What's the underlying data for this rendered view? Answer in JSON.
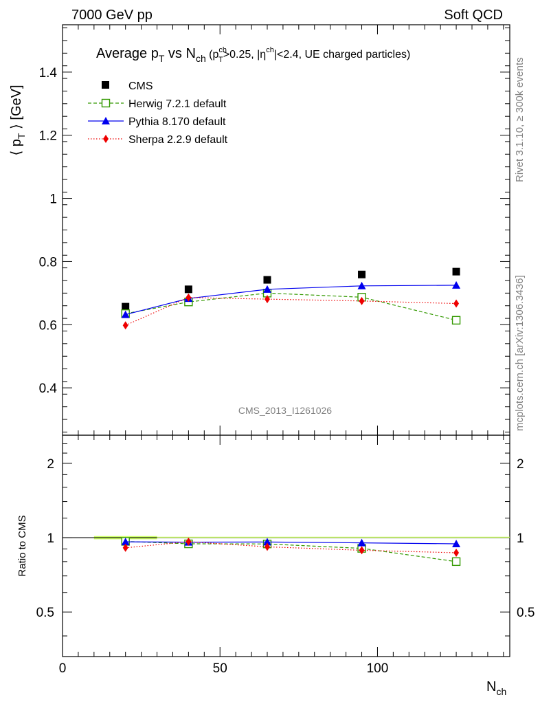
{
  "header": {
    "left": "7000 GeV pp",
    "right": "Soft QCD"
  },
  "side_labels": {
    "rivet": "Rivet 3.1.10, ≥ 300k events",
    "mcplots": "mcplots.cern.ch [arXiv:1306.3436]"
  },
  "watermark": "CMS_2013_I1261026",
  "title": {
    "main": "Average p",
    "main_sub": "T",
    "vs": " vs N",
    "vs_sub": "ch",
    "cuts_open": " (p",
    "cuts_sup": "ch",
    "cuts_sub": "T",
    "cuts_mid": ">0.25, |η",
    "cuts_sup2": "ch",
    "cuts_end": "|<2.4, UE charged particles)"
  },
  "axes": {
    "ylabel_main": "⟨ p",
    "ylabel_sub": "T",
    "ylabel_end": " ⟩ [GeV]",
    "ylabel_ratio": "Ratio to CMS",
    "xlabel_main": "N",
    "xlabel_sub": "ch"
  },
  "chart_data": [
    {
      "type": "scatter",
      "panel": "main",
      "x": [
        20,
        40,
        65,
        95,
        125
      ],
      "xlim": [
        0,
        142
      ],
      "ylim": [
        0.25,
        1.55
      ],
      "yticks": [
        0.4,
        0.6,
        0.8,
        1,
        1.2,
        1.4
      ],
      "ytick_labels": [
        "0.4",
        "0.6",
        "0.8",
        "1",
        "1.2",
        "1.4"
      ],
      "series": [
        {
          "name": "CMS",
          "values": [
            0.657,
            0.712,
            0.742,
            0.759,
            0.768
          ],
          "color": "#000000",
          "marker": "square",
          "line": "none"
        },
        {
          "name": "Herwig 7.2.1 default",
          "values": [
            0.635,
            0.672,
            0.7,
            0.687,
            0.614
          ],
          "color": "#339900",
          "marker": "open-square",
          "line": "dashed"
        },
        {
          "name": "Pythia 8.170 default",
          "values": [
            0.632,
            0.683,
            0.712,
            0.723,
            0.725
          ],
          "color": "#0000ee",
          "marker": "triangle",
          "line": "solid"
        },
        {
          "name": "Sherpa 2.2.9 default",
          "values": [
            0.598,
            0.686,
            0.681,
            0.675,
            0.667
          ],
          "color": "#ee0000",
          "marker": "diamond",
          "line": "dotted"
        }
      ]
    },
    {
      "type": "scatter",
      "panel": "ratio",
      "x": [
        20,
        40,
        65,
        95,
        125
      ],
      "xlim": [
        0,
        142
      ],
      "ylim": [
        0.33,
        2.6
      ],
      "yscale": "log",
      "yticks": [
        0.5,
        1,
        2
      ],
      "ytick_labels": [
        "0.5",
        "1",
        "2"
      ],
      "xticks": [
        0,
        50,
        100
      ],
      "xtick_labels": [
        "0",
        "50",
        "100"
      ],
      "band": {
        "x": [
          10,
          30
        ],
        "y": [
          0.985,
          1.015
        ],
        "color": "#ccff66"
      },
      "series": [
        {
          "name": "Herwig 7.2.1 default",
          "values": [
            0.966,
            0.944,
            0.943,
            0.905,
            0.8
          ],
          "color": "#339900",
          "marker": "open-square",
          "line": "dashed"
        },
        {
          "name": "Pythia 8.170 default",
          "values": [
            0.962,
            0.959,
            0.96,
            0.953,
            0.944
          ],
          "color": "#0000ee",
          "marker": "triangle",
          "line": "solid"
        },
        {
          "name": "Sherpa 2.2.9 default",
          "values": [
            0.91,
            0.963,
            0.918,
            0.889,
            0.869
          ],
          "color": "#ee0000",
          "marker": "diamond",
          "line": "dotted"
        }
      ]
    }
  ]
}
